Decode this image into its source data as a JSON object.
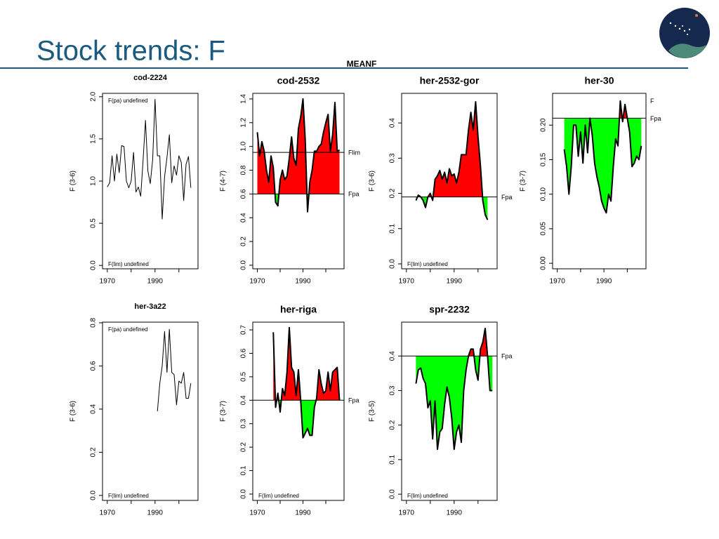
{
  "header": {
    "title": "Stock trends: F",
    "subtitle": "MEANF"
  },
  "chart_data": [
    {
      "type": "line",
      "title": "cod-2224",
      "title_style": "small",
      "y_label": "F (3-6)",
      "note_top": "F(pa) undefined",
      "note_bottom": "F(lim) undefined",
      "x": [
        1970,
        1971,
        1972,
        1973,
        1974,
        1975,
        1976,
        1977,
        1978,
        1979,
        1980,
        1981,
        1982,
        1983,
        1984,
        1985,
        1986,
        1987,
        1988,
        1989,
        1990,
        1991,
        1992,
        1993,
        1994,
        1995,
        1996,
        1997,
        1998,
        1999,
        2000,
        2001,
        2002,
        2003,
        2004,
        2005
      ],
      "values": [
        0.93,
        0.98,
        1.3,
        1.0,
        1.32,
        1.1,
        1.42,
        1.41,
        1.0,
        0.92,
        1.0,
        1.34,
        0.87,
        0.93,
        0.82,
        1.25,
        1.72,
        1.12,
        0.97,
        1.25,
        1.97,
        1.3,
        1.3,
        0.55,
        1.05,
        1.28,
        1.55,
        0.98,
        1.18,
        1.07,
        1.3,
        1.22,
        0.77,
        1.2,
        1.29,
        0.92
      ],
      "xlim": [
        1968,
        2008
      ],
      "xticks": [
        1970,
        1990
      ],
      "minor_xticks": [
        1980,
        2000
      ],
      "ylim": [
        -0.04,
        2.04
      ],
      "yticks": [
        {
          "value": 0,
          "label": "0.0"
        },
        0.5,
        {
          "value": 1,
          "label": "1.0"
        },
        1.5,
        {
          "value": 2,
          "label": "2.0"
        }
      ],
      "line_color": "#000000",
      "line_width": 1
    },
    {
      "type": "line",
      "title": "cod-2532",
      "title_style": "large",
      "y_label": "F (4-7)",
      "x": [
        1970,
        1971,
        1972,
        1973,
        1974,
        1975,
        1976,
        1977,
        1978,
        1979,
        1980,
        1981,
        1982,
        1983,
        1984,
        1985,
        1986,
        1987,
        1988,
        1989,
        1990,
        1991,
        1992,
        1993,
        1994,
        1995,
        1996,
        1997,
        1998,
        1999,
        2000,
        2001,
        2002,
        2003,
        2004,
        2005,
        2006
      ],
      "values": [
        1.12,
        0.92,
        1.04,
        0.96,
        0.8,
        0.7,
        0.92,
        0.82,
        0.53,
        0.5,
        0.72,
        0.8,
        0.72,
        0.75,
        0.9,
        1.08,
        0.9,
        0.84,
        1.15,
        1.25,
        1.4,
        1.05,
        0.45,
        0.7,
        0.8,
        0.96,
        0.96,
        1.0,
        1.02,
        1.12,
        1.2,
        1.27,
        0.96,
        1.1,
        1.37,
        0.96,
        0.97
      ],
      "xlim": [
        1968,
        2008
      ],
      "xticks": [
        1970,
        1990
      ],
      "minor_xticks": [
        1980,
        2000
      ],
      "ylim": [
        -0.03,
        1.447
      ],
      "yticks": [
        {
          "value": 0,
          "label": "0.0"
        },
        0.2,
        0.4,
        0.6,
        0.8,
        {
          "value": 1,
          "label": "1.0"
        },
        1.2,
        1.4
      ],
      "reference_lines": [
        {
          "label": "Flim",
          "value": 0.95
        },
        {
          "label": "Fpa",
          "value": 0.6
        }
      ],
      "fill_reference": 1,
      "fill_above": "#ff0000",
      "fill_below": "#00ff00",
      "line_color": "#000000",
      "line_width": 2
    },
    {
      "type": "line",
      "title": "her-2532-gor",
      "title_style": "large",
      "y_label": "F (3-6)",
      "note_bottom": "F(lim) undefined",
      "x": [
        1974,
        1975,
        1976,
        1977,
        1978,
        1979,
        1980,
        1981,
        1982,
        1983,
        1984,
        1985,
        1986,
        1987,
        1988,
        1989,
        1990,
        1991,
        1992,
        1993,
        1994,
        1995,
        1996,
        1997,
        1998,
        1999,
        2000,
        2001,
        2002,
        2003,
        2004
      ],
      "values": [
        0.18,
        0.195,
        0.19,
        0.18,
        0.16,
        0.19,
        0.2,
        0.18,
        0.24,
        0.25,
        0.265,
        0.24,
        0.26,
        0.23,
        0.27,
        0.25,
        0.255,
        0.23,
        0.26,
        0.31,
        0.31,
        0.31,
        0.38,
        0.43,
        0.38,
        0.46,
        0.36,
        0.28,
        0.18,
        0.14,
        0.125
      ],
      "xlim": [
        1968,
        2008
      ],
      "xticks": [
        1970,
        1990
      ],
      "minor_xticks": [
        1980,
        2000
      ],
      "ylim": [
        -0.014,
        0.484
      ],
      "yticks": [
        {
          "value": 0,
          "label": "0.0"
        },
        0.1,
        0.2,
        0.3,
        0.4
      ],
      "reference_lines": [
        {
          "label": "Fpa",
          "value": 0.19
        }
      ],
      "fill_reference": 0,
      "fill_above": "#ff0000",
      "fill_below": "#00ff00",
      "line_color": "#000000",
      "line_width": 2
    },
    {
      "type": "line",
      "title": "her-30",
      "title_style": "large",
      "y_label": "F (3-7)",
      "x": [
        1973,
        1974,
        1975,
        1976,
        1977,
        1978,
        1979,
        1980,
        1981,
        1982,
        1983,
        1984,
        1985,
        1986,
        1987,
        1988,
        1989,
        1990,
        1991,
        1992,
        1993,
        1994,
        1995,
        1996,
        1997,
        1998,
        1999,
        2000,
        2001,
        2002,
        2003,
        2004,
        2005,
        2006
      ],
      "values": [
        0.165,
        0.14,
        0.1,
        0.14,
        0.2,
        0.2,
        0.155,
        0.19,
        0.145,
        0.2,
        0.16,
        0.21,
        0.185,
        0.145,
        0.125,
        0.11,
        0.09,
        0.08,
        0.073,
        0.1,
        0.09,
        0.14,
        0.18,
        0.17,
        0.235,
        0.205,
        0.23,
        0.21,
        0.19,
        0.14,
        0.145,
        0.155,
        0.15,
        0.17
      ],
      "xlim": [
        1968,
        2008
      ],
      "xticks": [
        1970,
        1990
      ],
      "minor_xticks": [
        1980,
        2000
      ],
      "ylim": [
        -0.008,
        0.246
      ],
      "yticks": [
        {
          "value": 0,
          "label": "0.00"
        },
        0.05,
        {
          "value": 0.1,
          "label": "0.10"
        },
        0.15,
        {
          "value": 0.2,
          "label": "0.20"
        }
      ],
      "reference_lines": [
        {
          "label": "F",
          "value": 0.235,
          "line": false
        },
        {
          "label": "Fpa",
          "value": 0.21
        }
      ],
      "fill_reference": 1,
      "fill_above": "#ff0000",
      "fill_below": "#00ff00",
      "line_color": "#000000",
      "line_width": 2
    },
    {
      "type": "line",
      "title": "her-3a22",
      "title_style": "small",
      "y_label": "F (3-6)",
      "note_top": "F(pa) undefined",
      "note_bottom": "F(lim) undefined",
      "x": [
        1991,
        1992,
        1993,
        1994,
        1995,
        1996,
        1997,
        1998,
        1999,
        2000,
        2001,
        2002,
        2003,
        2004,
        2005
      ],
      "values": [
        0.39,
        0.52,
        0.6,
        0.76,
        0.57,
        0.77,
        0.57,
        0.56,
        0.42,
        0.53,
        0.52,
        0.57,
        0.45,
        0.45,
        0.52
      ],
      "xlim": [
        1968,
        2008
      ],
      "xticks": [
        1970,
        1990
      ],
      "minor_xticks": [
        1980,
        2000
      ],
      "ylim": [
        -0.023,
        0.803
      ],
      "yticks": [
        {
          "value": 0,
          "label": "0.0"
        },
        0.2,
        0.4,
        0.6,
        0.8
      ],
      "line_color": "#000000",
      "line_width": 1
    },
    {
      "type": "line",
      "title": "her-riga",
      "title_style": "large",
      "y_label": "F (3-7)",
      "note_bottom": "F(lim) undefined",
      "x": [
        1977,
        1978,
        1979,
        1980,
        1981,
        1982,
        1983,
        1984,
        1985,
        1986,
        1987,
        1988,
        1989,
        1990,
        1991,
        1992,
        1993,
        1994,
        1995,
        1996,
        1997,
        1998,
        1999,
        2000,
        2001,
        2002,
        2003,
        2004,
        2005,
        2006
      ],
      "values": [
        0.69,
        0.37,
        0.43,
        0.35,
        0.45,
        0.42,
        0.52,
        0.71,
        0.54,
        0.52,
        0.42,
        0.53,
        0.4,
        0.24,
        0.26,
        0.28,
        0.25,
        0.25,
        0.37,
        0.41,
        0.53,
        0.47,
        0.43,
        0.44,
        0.52,
        0.44,
        0.52,
        0.53,
        0.54,
        0.4
      ],
      "xlim": [
        1968,
        2008
      ],
      "xticks": [
        1970,
        1990
      ],
      "minor_xticks": [
        1980,
        2000
      ],
      "ylim": [
        -0.027,
        0.733
      ],
      "yticks": [
        {
          "value": 0,
          "label": "0.0"
        },
        0.1,
        0.2,
        0.3,
        0.4,
        0.5,
        0.6,
        0.7
      ],
      "reference_lines": [
        {
          "label": "Fpa",
          "value": 0.4
        }
      ],
      "fill_reference": 0,
      "fill_above": "#ff0000",
      "fill_below": "#00ff00",
      "line_color": "#000000",
      "line_width": 2
    },
    {
      "type": "line",
      "title": "spr-2232",
      "title_style": "large",
      "y_label": "F (3-5)",
      "note_bottom": "F(lim) undefined",
      "x": [
        1974,
        1975,
        1976,
        1977,
        1978,
        1979,
        1980,
        1981,
        1982,
        1983,
        1984,
        1985,
        1986,
        1987,
        1988,
        1989,
        1990,
        1991,
        1992,
        1993,
        1994,
        1995,
        1996,
        1997,
        1998,
        1999,
        2000,
        2001,
        2002,
        2003,
        2004,
        2005,
        2006
      ],
      "values": [
        0.32,
        0.36,
        0.365,
        0.335,
        0.32,
        0.25,
        0.27,
        0.16,
        0.27,
        0.13,
        0.18,
        0.19,
        0.26,
        0.31,
        0.28,
        0.22,
        0.13,
        0.18,
        0.2,
        0.15,
        0.3,
        0.36,
        0.4,
        0.42,
        0.42,
        0.36,
        0.33,
        0.42,
        0.44,
        0.48,
        0.4,
        0.3,
        0.3
      ],
      "xlim": [
        1968,
        2008
      ],
      "xticks": [
        1970,
        1990
      ],
      "minor_xticks": [
        1980,
        2000
      ],
      "ylim": [
        -0.018,
        0.498
      ],
      "yticks": [
        {
          "value": 0,
          "label": "0.0"
        },
        0.1,
        0.2,
        0.3,
        0.4
      ],
      "reference_lines": [
        {
          "label": "Fpa",
          "value": 0.4
        }
      ],
      "fill_reference": 0,
      "fill_above": "#ff0000",
      "fill_below": "#00ff00",
      "line_color": "#000000",
      "line_width": 2
    }
  ]
}
